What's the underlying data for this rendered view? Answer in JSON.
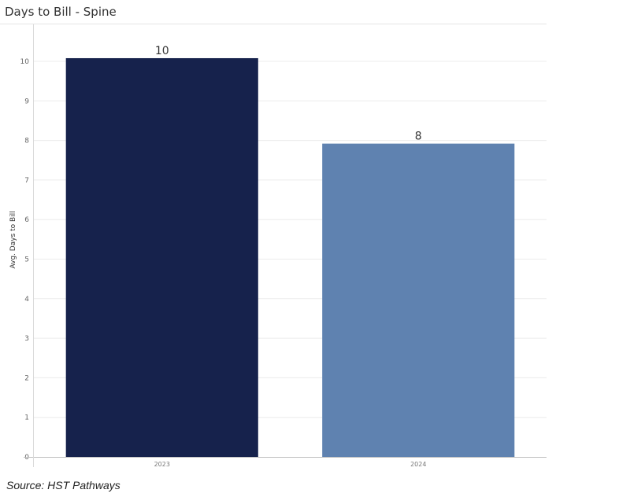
{
  "chart_data": {
    "type": "bar",
    "title": "Days to Bill - Spine",
    "xlabel": "",
    "ylabel": "Avg. Days to Bill",
    "categories": [
      "2023",
      "2024"
    ],
    "values": [
      10.08,
      7.92
    ],
    "data_labels": [
      "10",
      "8"
    ],
    "colors": [
      "#16224c",
      "#5f82b0"
    ],
    "ylim": [
      0,
      10.9
    ],
    "yticks": [
      0,
      1,
      2,
      3,
      4,
      5,
      6,
      7,
      8,
      9,
      10
    ],
    "grid": true,
    "legend": "none"
  },
  "source": "Source: HST Pathways"
}
